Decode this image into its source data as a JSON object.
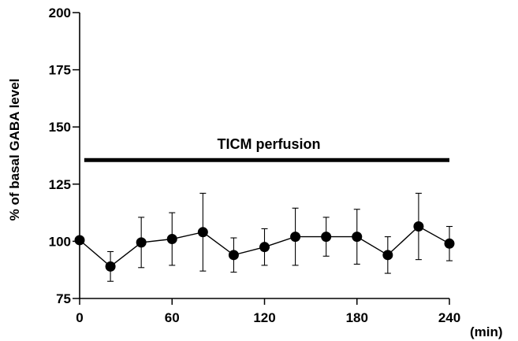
{
  "chart_data": {
    "type": "line",
    "title": "",
    "xlabel": "",
    "ylabel": "% of basal GABA level",
    "x_unit_label": "(min)",
    "xlim": [
      0,
      240
    ],
    "ylim": [
      75,
      200
    ],
    "x_ticks": [
      0,
      60,
      120,
      180,
      240
    ],
    "y_ticks": [
      75,
      100,
      125,
      150,
      175,
      200
    ],
    "grid": false,
    "legend": "none",
    "series": [
      {
        "x": [
          0,
          20,
          40,
          60,
          80,
          100,
          120,
          140,
          160,
          180,
          200,
          220,
          240
        ],
        "y": [
          100.5,
          89,
          99.5,
          101,
          104,
          94,
          97.5,
          102,
          102,
          102,
          94,
          106.5,
          99
        ],
        "error": [
          0,
          6.5,
          11,
          11.5,
          17,
          7.5,
          8,
          12.5,
          8.5,
          12,
          8,
          14.5,
          7.5
        ],
        "color": "#000000"
      }
    ],
    "annotations": [
      {
        "text": "TICM perfusion",
        "bar_from_x": 3,
        "bar_to_x": 240,
        "bar_y": 135.5
      }
    ]
  }
}
